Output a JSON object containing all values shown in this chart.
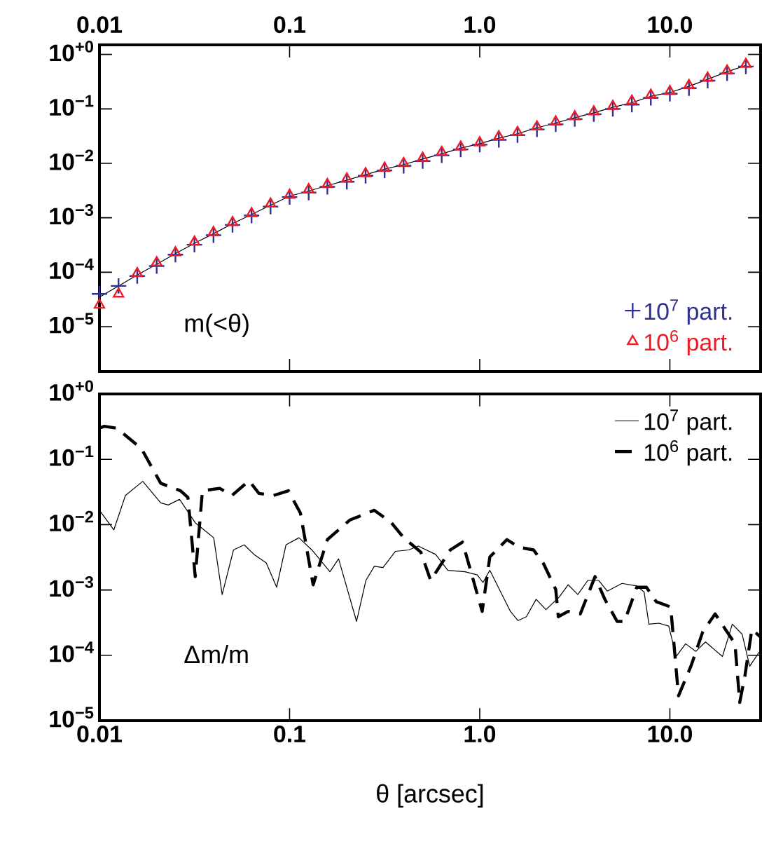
{
  "chart_data": [
    {
      "type": "line",
      "log": "xy",
      "legend": "bottom right",
      "xlim": [
        0.01,
        30
      ],
      "xticks": [
        {
          "value": 0.01,
          "label": "0.01"
        },
        {
          "value": 0.1,
          "label": "0.1"
        },
        {
          "value": 1,
          "label": "1.0"
        },
        {
          "value": 10,
          "label": "10.0"
        }
      ],
      "ylim": [
        1.5e-06,
        1.5
      ],
      "yticks": [
        {
          "value": 1,
          "label": "10$^{+0}$"
        },
        {
          "value": 0.1,
          "label": "10$^{−1}$"
        },
        {
          "value": 0.01,
          "label": "10$^{−2}$"
        },
        {
          "value": 0.001,
          "label": "10$^{−3}$"
        },
        {
          "value": 0.0001,
          "label": "10$^{−4}$"
        },
        {
          "value": 1e-05,
          "label": "10$^{−5}$"
        }
      ],
      "annotations": [
        "m(<θ)"
      ],
      "x": [
        0.01,
        0.0126,
        0.0158,
        0.02,
        0.0251,
        0.0316,
        0.0398,
        0.0501,
        0.0631,
        0.0794,
        0.1,
        0.126,
        0.158,
        0.2,
        0.251,
        0.316,
        0.398,
        0.501,
        0.631,
        0.794,
        1.0,
        1.26,
        1.58,
        2.0,
        2.51,
        3.16,
        3.98,
        5.01,
        6.31,
        7.94,
        10,
        12.6,
        15.8,
        20,
        25.1
      ],
      "series": [
        {
          "type": "line",
          "color": "#000000",
          "marker": "none",
          "line_style": "solid",
          "values": [
            3.5e-05,
            5.6e-05,
            8.9e-05,
            0.00014,
            0.00022,
            0.00034,
            0.00051,
            0.00078,
            0.00115,
            0.0017,
            0.0025,
            0.0031,
            0.0039,
            0.0049,
            0.0062,
            0.0078,
            0.0095,
            0.012,
            0.015,
            0.019,
            0.023,
            0.029,
            0.035,
            0.045,
            0.055,
            0.069,
            0.085,
            0.107,
            0.13,
            0.17,
            0.2,
            0.26,
            0.35,
            0.48,
            0.63
          ]
        },
        {
          "type": "scatter",
          "name": "10$^{7}$ part.",
          "color": "#2e3192",
          "marker": "cross",
          "values": [
            4e-05,
            5.6e-05,
            8.5e-05,
            0.00013,
            0.00021,
            0.00032,
            0.00048,
            0.00074,
            0.0011,
            0.0016,
            0.0024,
            0.0029,
            0.0037,
            0.0046,
            0.0059,
            0.0074,
            0.009,
            0.011,
            0.014,
            0.018,
            0.022,
            0.027,
            0.033,
            0.042,
            0.052,
            0.065,
            0.08,
            0.1,
            0.12,
            0.16,
            0.19,
            0.24,
            0.33,
            0.45,
            0.6
          ]
        },
        {
          "type": "scatter",
          "name": "10$^{6}$ part.",
          "color": "#ed1c24",
          "marker": "triangle",
          "values": [
            2.5e-05,
            4e-05,
            9.5e-05,
            0.00015,
            0.00023,
            0.00036,
            0.00054,
            0.00082,
            0.0012,
            0.0018,
            0.0026,
            0.0033,
            0.0041,
            0.0052,
            0.0065,
            0.0082,
            0.01,
            0.0125,
            0.016,
            0.02,
            0.024,
            0.031,
            0.037,
            0.047,
            0.058,
            0.072,
            0.089,
            0.112,
            0.14,
            0.18,
            0.21,
            0.27,
            0.37,
            0.5,
            0.66
          ]
        }
      ]
    },
    {
      "type": "line",
      "log": "xy",
      "legend": "top right",
      "xlabel": "θ [arcsec]",
      "xlim": [
        0.01,
        30
      ],
      "xticks": [
        {
          "value": 0.01,
          "label": "0.01"
        },
        {
          "value": 0.1,
          "label": "0.1"
        },
        {
          "value": 1,
          "label": "1.0"
        },
        {
          "value": 10,
          "label": "10.0"
        }
      ],
      "ylim": [
        1e-05,
        1
      ],
      "yticks": [
        {
          "value": 1,
          "label": "10$^{+0}$"
        },
        {
          "value": 0.1,
          "label": "10$^{−1}$"
        },
        {
          "value": 0.01,
          "label": "10$^{−2}$"
        },
        {
          "value": 0.001,
          "label": "10$^{−3}$"
        },
        {
          "value": 0.0001,
          "label": "10$^{−4}$"
        },
        {
          "value": 1e-05,
          "label": "10$^{−5}$"
        }
      ],
      "annotations": [
        "Δm/m"
      ],
      "series": [
        {
          "type": "line",
          "name": "10$^{7}$ part.",
          "color": "#000000",
          "marker": "none",
          "line_style": "solid",
          "x": [
            0.01,
            0.0119,
            0.0137,
            0.0169,
            0.021,
            0.023,
            0.0264,
            0.0319,
            0.0399,
            0.0442,
            0.0507,
            0.0577,
            0.065,
            0.0754,
            0.0855,
            0.0957,
            0.112,
            0.131,
            0.163,
            0.181,
            0.225,
            0.252,
            0.279,
            0.31,
            0.36,
            0.423,
            0.475,
            0.586,
            0.68,
            0.837,
            0.971,
            1.04,
            1.13,
            1.45,
            1.59,
            1.76,
            1.98,
            2.23,
            2.62,
            2.92,
            3.28,
            3.7,
            4.22,
            4.69,
            5.6,
            6.7,
            7.32,
            7.76,
            8.75,
            9.86,
            10.8,
            12.1,
            13.7,
            15.4,
            18.9,
            21.3,
            24.0,
            26.3,
            30
          ],
          "values": [
            0.0166,
            0.0083,
            0.028,
            0.046,
            0.0215,
            0.02,
            0.0244,
            0.0107,
            0.0063,
            0.00085,
            0.0041,
            0.0049,
            0.0035,
            0.0026,
            0.0011,
            0.0049,
            0.0063,
            0.0041,
            0.0019,
            0.003,
            0.00033,
            0.0014,
            0.0023,
            0.0022,
            0.0039,
            0.0041,
            0.0047,
            0.0035,
            0.002,
            0.0019,
            0.0017,
            0.0013,
            0.002,
            0.00047,
            0.00034,
            0.00039,
            0.00072,
            0.0005,
            0.00078,
            0.0012,
            0.00085,
            0.0014,
            0.0014,
            0.00096,
            0.00126,
            0.00115,
            0.00093,
            0.0003,
            0.00031,
            0.00028,
            9.6e-05,
            0.00015,
            0.000115,
            0.00016,
            9.6e-05,
            0.0003,
            0.00021,
            6.8e-05,
            0.00012
          ]
        },
        {
          "type": "line",
          "name": "10$^{6}$ part.",
          "color": "#000000",
          "marker": "none",
          "line_style": "dashed",
          "x": [
            0.01,
            0.0106,
            0.0123,
            0.0166,
            0.021,
            0.0267,
            0.0292,
            0.0319,
            0.0348,
            0.0429,
            0.0498,
            0.0612,
            0.069,
            0.0824,
            0.0986,
            0.114,
            0.133,
            0.158,
            0.207,
            0.279,
            0.343,
            0.398,
            0.49,
            0.552,
            0.7,
            0.812,
            1.03,
            1.13,
            1.39,
            1.61,
            1.92,
            2.17,
            2.51,
            2.59,
            2.92,
            3.38,
            4.04,
            4.55,
            5.28,
            5.77,
            6.7,
            7.53,
            8.49,
            10.1,
            11.1,
            12.9,
            14.9,
            17.3,
            22.0,
            23.3,
            24.8,
            27.0,
            30
          ],
          "values": [
            0.3,
            0.32,
            0.3,
            0.147,
            0.043,
            0.033,
            0.026,
            0.0016,
            0.033,
            0.036,
            0.028,
            0.047,
            0.03,
            0.028,
            0.033,
            0.015,
            0.0012,
            0.0059,
            0.0117,
            0.0166,
            0.0107,
            0.0063,
            0.0038,
            0.0014,
            0.0041,
            0.0054,
            0.00047,
            0.0032,
            0.0059,
            0.0045,
            0.0041,
            0.0025,
            0.00102,
            0.00039,
            0.00047,
            0.00043,
            0.0016,
            0.00072,
            0.00033,
            0.00033,
            0.0011,
            0.0011,
            0.00066,
            0.00055,
            2.4e-05,
            6.8e-05,
            0.00023,
            0.00043,
            0.00015,
            1.9e-05,
            4.8e-05,
            0.00025,
            0.00019
          ]
        }
      ]
    }
  ]
}
